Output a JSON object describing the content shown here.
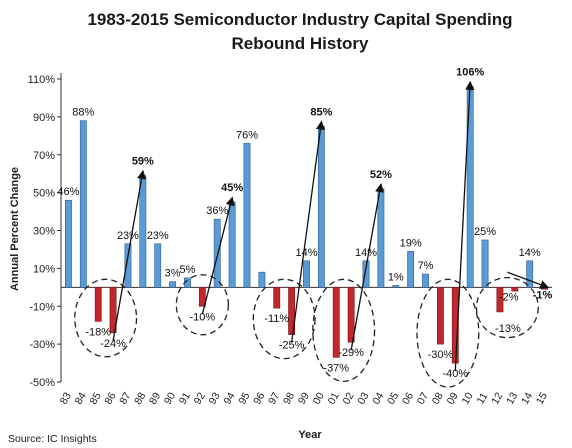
{
  "source": "Source: IC Insights",
  "chart_data": {
    "type": "bar",
    "title": "1983-2015 Semiconductor Industry Capital Spending",
    "subtitle": "Rebound History",
    "xlabel": "Year",
    "ylabel": "Annual Percent Change",
    "ylim": [
      -50,
      110
    ],
    "yticks": [
      "110%",
      "90%",
      "70%",
      "50%",
      "30%",
      "10%",
      "-10%",
      "-30%",
      "-50%"
    ],
    "categories": [
      "83",
      "84",
      "85",
      "86",
      "87",
      "88",
      "89",
      "90",
      "91",
      "92",
      "93",
      "94",
      "95",
      "96",
      "97",
      "98",
      "99",
      "00",
      "01",
      "02",
      "03",
      "04",
      "05",
      "06",
      "07",
      "08",
      "09",
      "10",
      "11",
      "12",
      "13",
      "14",
      "15"
    ],
    "values": [
      46,
      88,
      -18,
      -24,
      23,
      59,
      23,
      3,
      5,
      -10,
      36,
      45,
      76,
      8,
      -11,
      -25,
      14,
      85,
      -37,
      -29,
      14,
      52,
      1,
      19,
      7,
      -30,
      -40,
      106,
      25,
      -13,
      -2,
      14,
      -1
    ],
    "colors": {
      "positive": "#5b9bd5",
      "negative": "#c0282d"
    },
    "data_labels": [
      {
        "i": 0,
        "text": "46%"
      },
      {
        "i": 1,
        "text": "88%"
      },
      {
        "i": 2,
        "text": "-18%"
      },
      {
        "i": 3,
        "text": "-24%"
      },
      {
        "i": 4,
        "text": "23%"
      },
      {
        "i": 5,
        "text": "59%",
        "bold": true
      },
      {
        "i": 6,
        "text": "23%"
      },
      {
        "i": 7,
        "text": "3%"
      },
      {
        "i": 8,
        "text": "5%"
      },
      {
        "i": 9,
        "text": "-10%"
      },
      {
        "i": 10,
        "text": "36%"
      },
      {
        "i": 11,
        "text": "45%",
        "bold": true
      },
      {
        "i": 12,
        "text": "76%"
      },
      {
        "i": 14,
        "text": "-11%"
      },
      {
        "i": 15,
        "text": "-25%"
      },
      {
        "i": 16,
        "text": "14%"
      },
      {
        "i": 17,
        "text": "85%",
        "bold": true
      },
      {
        "i": 18,
        "text": "-37%"
      },
      {
        "i": 19,
        "text": "-29%"
      },
      {
        "i": 20,
        "text": "14%"
      },
      {
        "i": 21,
        "text": "52%",
        "bold": true
      },
      {
        "i": 22,
        "text": "1%"
      },
      {
        "i": 23,
        "text": "19%"
      },
      {
        "i": 24,
        "text": "7%"
      },
      {
        "i": 25,
        "text": "-30%"
      },
      {
        "i": 26,
        "text": "-40%"
      },
      {
        "i": 27,
        "text": "106%",
        "bold": true
      },
      {
        "i": 28,
        "text": "25%"
      },
      {
        "i": 29,
        "text": "-13%"
      },
      {
        "i": 30,
        "text": "-2%"
      },
      {
        "i": 31,
        "text": "14%"
      },
      {
        "i": 32,
        "text": "-1%",
        "bold": true
      }
    ],
    "rebound_arrows": [
      {
        "from": "86",
        "to": "88"
      },
      {
        "from": "92",
        "to": "94"
      },
      {
        "from": "98",
        "to": "00"
      },
      {
        "from": "02",
        "to": "04"
      },
      {
        "from": "09",
        "to": "10"
      },
      {
        "from": "13",
        "to": "15"
      }
    ],
    "downturn_circles": [
      {
        "years": [
          "85",
          "86"
        ]
      },
      {
        "years": [
          "92"
        ]
      },
      {
        "years": [
          "97",
          "98"
        ]
      },
      {
        "years": [
          "01",
          "02"
        ]
      },
      {
        "years": [
          "08",
          "09"
        ]
      },
      {
        "years": [
          "12",
          "13"
        ]
      }
    ],
    "grid": false,
    "legend": "none"
  }
}
